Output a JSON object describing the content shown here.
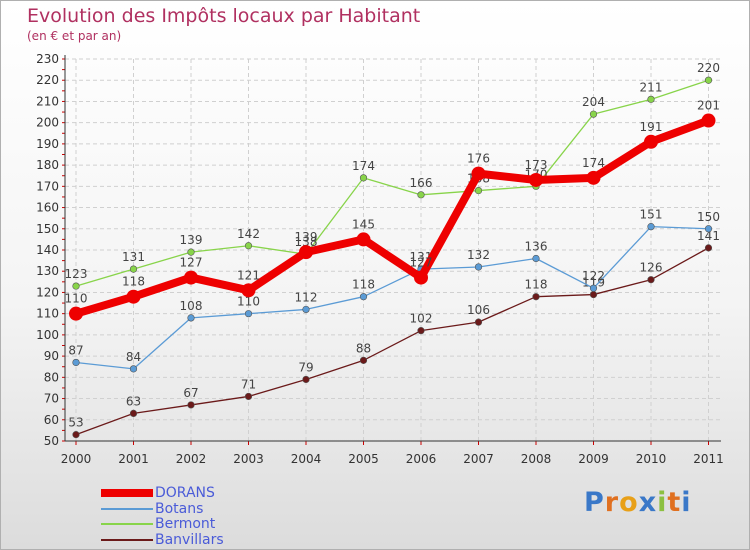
{
  "header": {
    "title": "Evolution des Impôts locaux par Habitant",
    "subtitle": "(en € et par an)"
  },
  "brand": {
    "text": "Proxiti",
    "letters": [
      "P",
      "r",
      "o",
      "x",
      "i",
      "t",
      "i"
    ],
    "letter_colors": [
      "#3a78c8",
      "#e07020",
      "#e8a018",
      "#3a78c8",
      "#8cc040",
      "#e07020",
      "#3a78c8"
    ]
  },
  "chart_data": {
    "type": "line",
    "categories": [
      "2000",
      "2001",
      "2002",
      "2003",
      "2004",
      "2005",
      "2006",
      "2007",
      "2008",
      "2009",
      "2010",
      "2011"
    ],
    "ylim": [
      50,
      230
    ],
    "yticks": [
      50,
      60,
      70,
      80,
      90,
      100,
      110,
      120,
      130,
      140,
      150,
      160,
      170,
      180,
      190,
      200,
      210,
      220,
      230
    ],
    "grid": true,
    "legend_position": "bottom-left",
    "series": [
      {
        "name": "Banvillars",
        "color": "#6b1a1a",
        "values": [
          53,
          63,
          67,
          71,
          79,
          88,
          102,
          106,
          118,
          119,
          126,
          141
        ]
      },
      {
        "name": "Botans",
        "color": "#5b9bd5",
        "values": [
          87,
          84,
          108,
          110,
          112,
          118,
          131,
          132,
          136,
          122,
          151,
          150
        ]
      },
      {
        "name": "Bermont",
        "color": "#88d44a",
        "values": [
          123,
          131,
          139,
          142,
          138,
          174,
          166,
          168,
          170,
          204,
          211,
          220
        ]
      },
      {
        "name": "DORANS",
        "color": "#ee0000",
        "values": [
          110,
          118,
          127,
          121,
          139,
          145,
          127,
          176,
          173,
          174,
          191,
          201
        ]
      }
    ],
    "legend_order": [
      "DORANS",
      "Botans",
      "Bermont",
      "Banvillars"
    ]
  }
}
